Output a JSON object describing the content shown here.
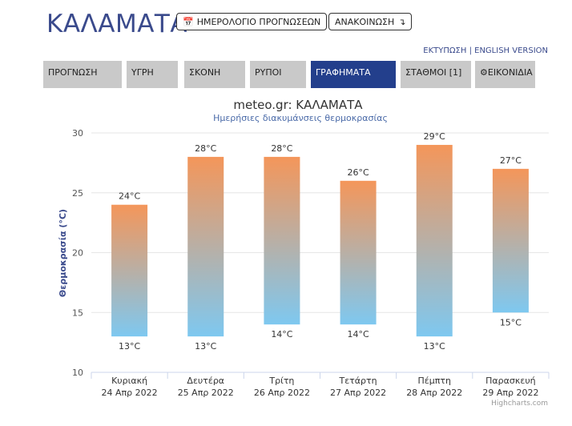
{
  "header": {
    "city": "ΚΑΛΑΜΑΤΑ",
    "calendar_button": "ΗΜΕΡΟΛΟΓΙΟ ΠΡΟΓΝΩΣΕΩΝ",
    "announcement_button": "ΑΝΑΚΟΙΝΩΣΗ",
    "print_link": "ΕΚΤΥΠΩΣΗ",
    "separator": " | ",
    "english_link": "ENGLISH VERSION"
  },
  "nav": {
    "tabs": [
      "ΠΡΟΓΝΩΣΗ",
      "ΥΓΡΗ",
      "ΣΚΟΝΗ",
      "ΡΥΠΟΙ",
      "ΓΡΑΦΗΜΑΤΑ",
      "ΣΤΑΘΜΟΙ [1]",
      "ΕΙΚΟΝΙΔΙΑ"
    ],
    "active": "ΓΡΑΦΗΜΑΤΑ"
  },
  "chart_data": {
    "type": "bar",
    "title": "meteo.gr: ΚΑΛΑΜΑΤΑ",
    "subtitle": "Ημερήσιες διακυμάνσεις θερμοκρασίας",
    "ylabel": "Θερμοκρασία (°C)",
    "ylim": [
      10,
      30
    ],
    "yticks": [
      10,
      15,
      20,
      25,
      30
    ],
    "grid": true,
    "categories": [
      "Κυριακή",
      "Δευτέρα",
      "Τρίτη",
      "Τετάρτη",
      "Πέμπτη",
      "Παρασκευή"
    ],
    "dates": [
      "24 Απρ 2022",
      "25 Απρ 2022",
      "26 Απρ 2022",
      "27 Απρ 2022",
      "28 Απρ 2022",
      "29 Απρ 2022"
    ],
    "min": [
      13,
      13,
      14,
      14,
      13,
      15
    ],
    "max": [
      24,
      28,
      28,
      26,
      29,
      27
    ],
    "max_labels": [
      "24°C",
      "28°C",
      "28°C",
      "26°C",
      "29°C",
      "27°C"
    ],
    "min_labels": [
      "13°C",
      "13°C",
      "14°C",
      "14°C",
      "13°C",
      "15°C"
    ],
    "credit": "Highcharts.com",
    "colors": {
      "top": "#f4965a",
      "bottom": "#7ec8f0",
      "grid": "#e6e6e6",
      "title": "#333333",
      "subtitle": "#4a6aa8",
      "ylabel": "#3a4a8c"
    }
  }
}
